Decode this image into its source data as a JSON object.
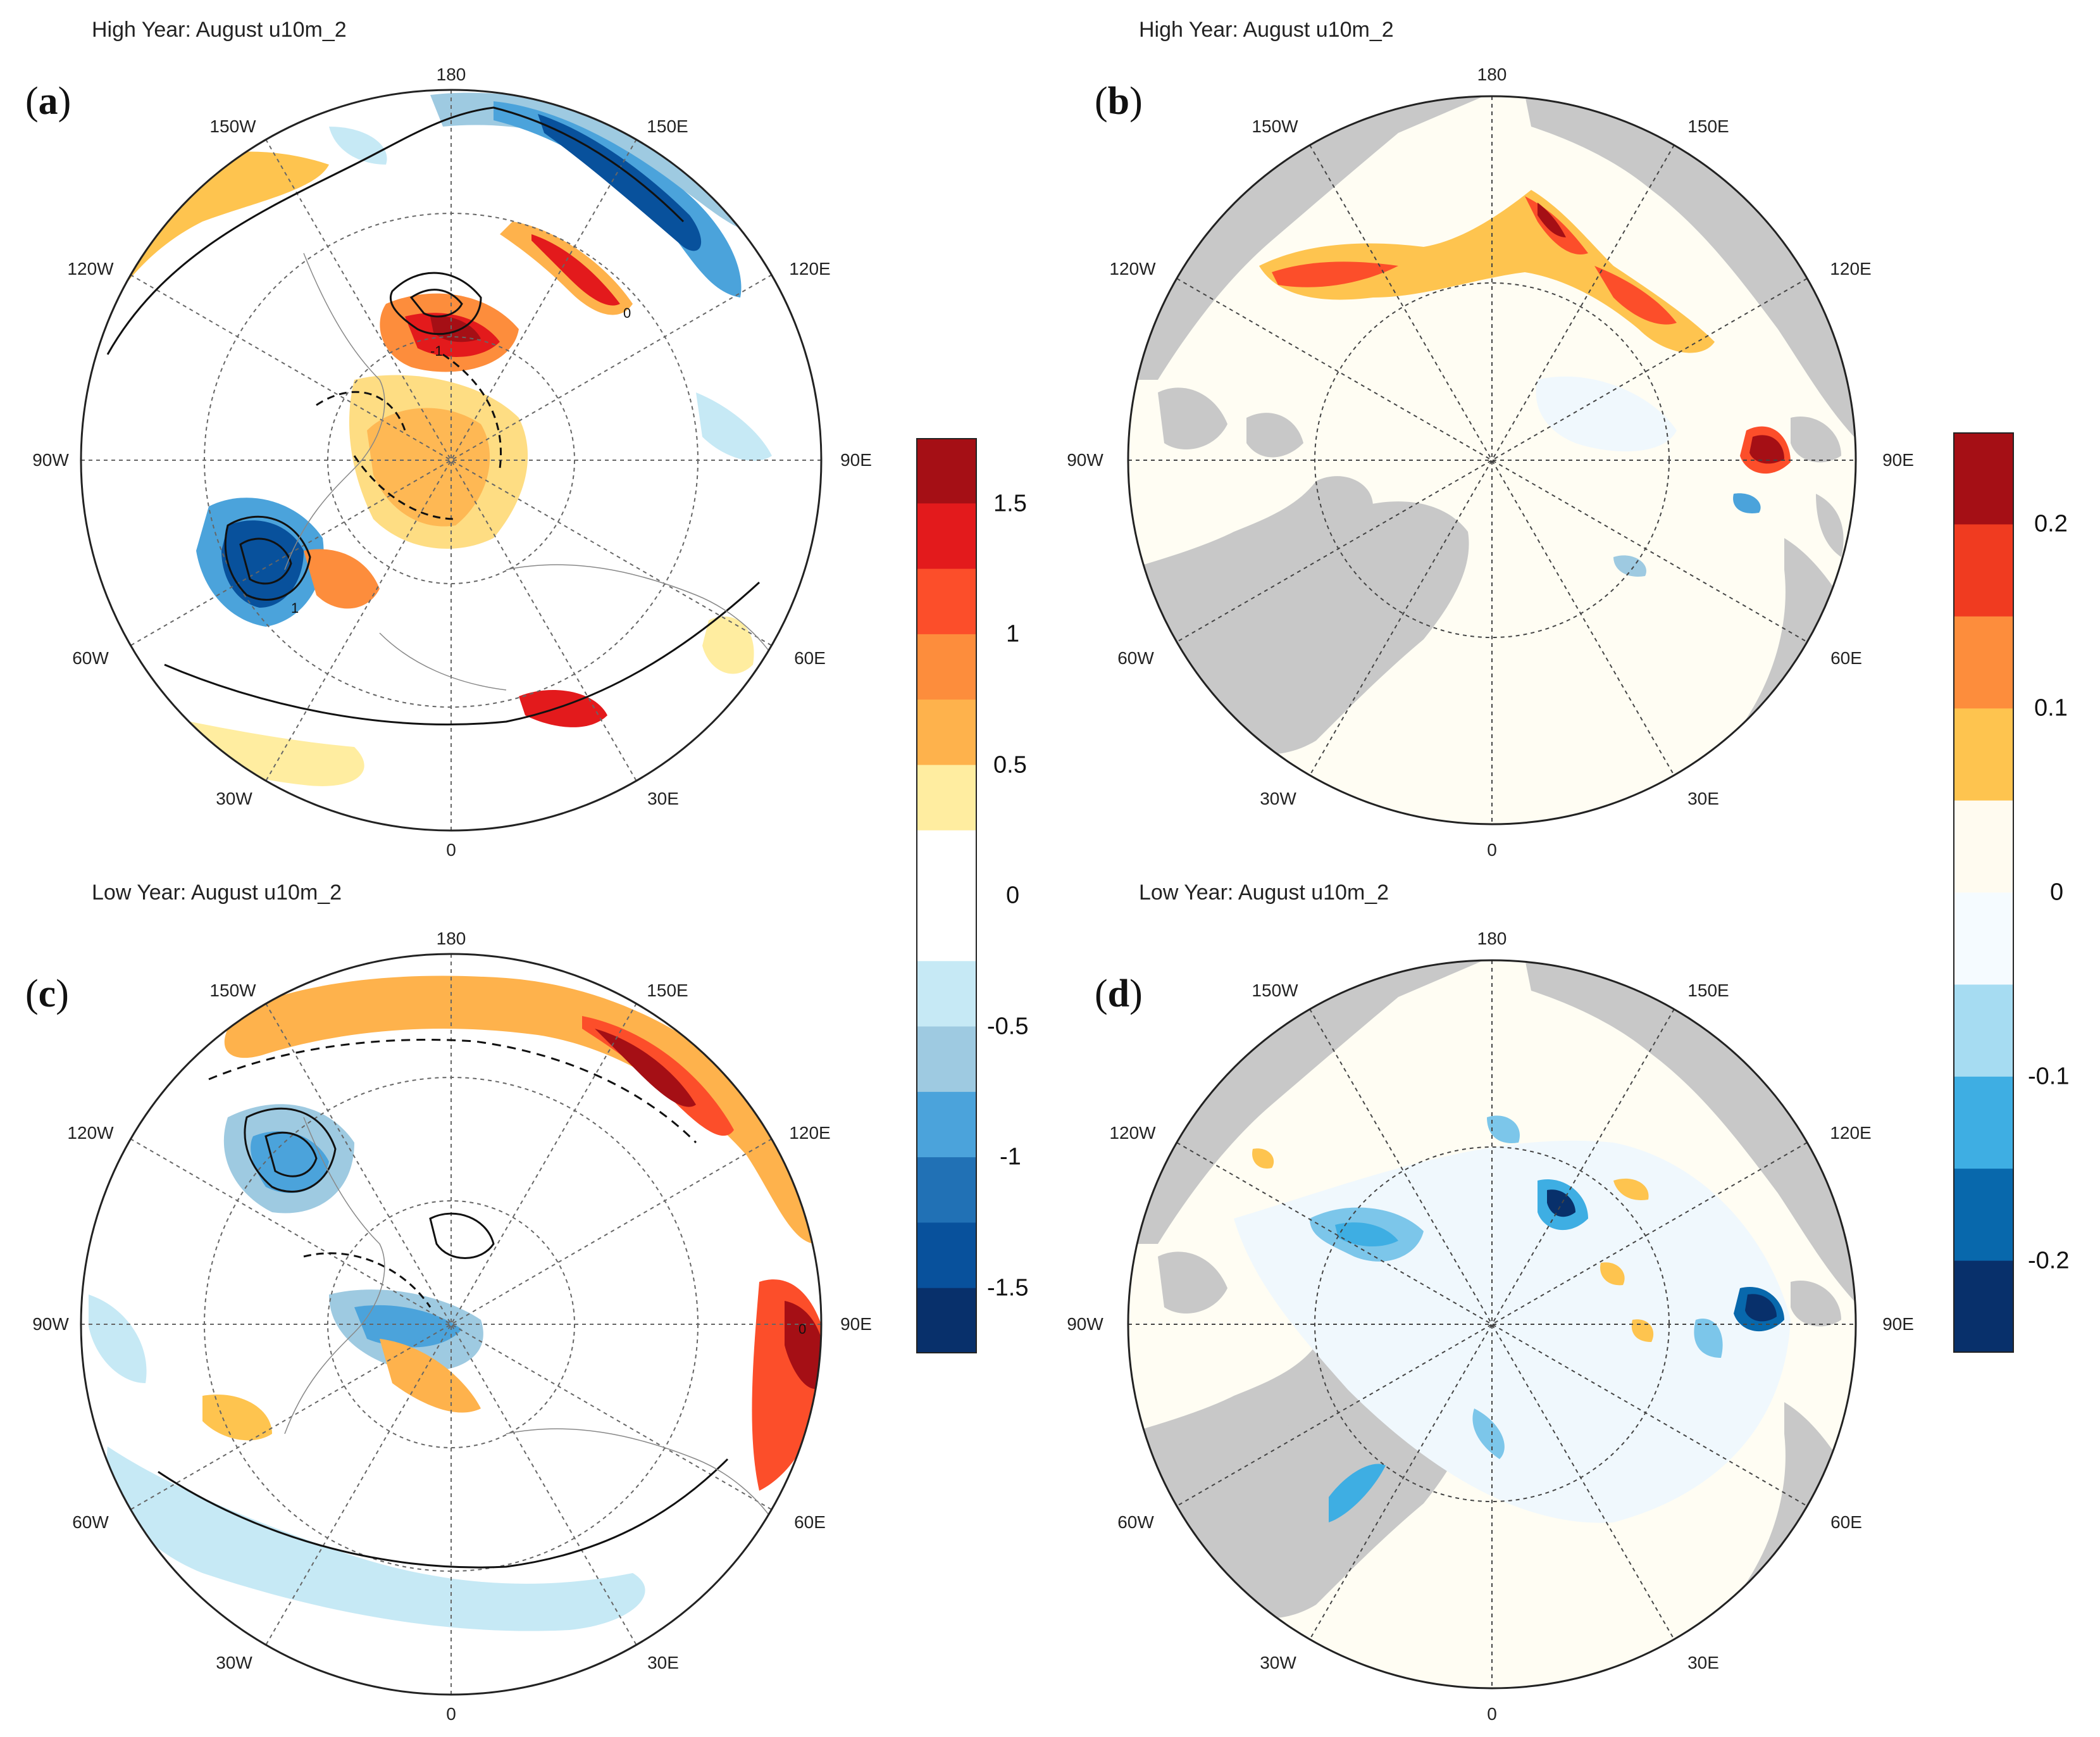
{
  "panels": [
    {
      "id": "a",
      "letter": "a",
      "title": "High Year: August u10m_2"
    },
    {
      "id": "b",
      "letter": "b",
      "title": "High Year: August u10m_2"
    },
    {
      "id": "c",
      "letter": "c",
      "title": "Low Year: August u10m_2"
    },
    {
      "id": "d",
      "letter": "d",
      "title": "Low Year: August u10m_2"
    }
  ],
  "longitude_labels": {
    "top": "180",
    "bottom": "0",
    "left": "90W",
    "right": "90E",
    "ul1": "150W",
    "ul2": "120W",
    "ur1": "150E",
    "ur2": "120E",
    "ll1": "60W",
    "ll2": "30W",
    "lr1": "60E",
    "lr2": "30E"
  },
  "contour_labels": {
    "zero": "0",
    "one": "1",
    "neg_one": "-1"
  },
  "colorbar_left": {
    "labels": [
      "1.5",
      "1",
      "0.5",
      "0",
      "-0.5",
      "-1",
      "-1.5"
    ],
    "colors": [
      "#a50f15",
      "#e31a1c",
      "#fc4e2a",
      "#fd8d3c",
      "#feb24c",
      "#ffeda0",
      "#ffffff",
      "#ffffff",
      "#c6e9f5",
      "#9ecae1",
      "#4ba3db",
      "#2171b5",
      "#08519c",
      "#08306b"
    ]
  },
  "colorbar_right": {
    "labels": [
      "0.2",
      "0.1",
      "0",
      "-0.1",
      "-0.2"
    ],
    "colors": [
      "#a50f15",
      "#f03b20",
      "#fd8d3c",
      "#fec44f",
      "#fffbf0",
      "#f5fbff",
      "#a6dcf2",
      "#3eaee3",
      "#0868ac",
      "#08306b"
    ]
  },
  "colors": {
    "land": "#c8c8c8",
    "ocean": "#fffdf3"
  }
}
